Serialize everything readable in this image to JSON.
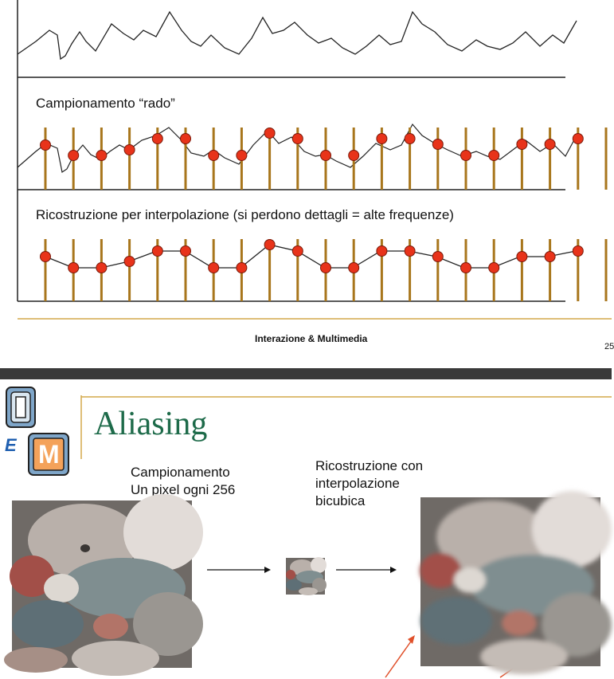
{
  "slide_top": {
    "caption_sparse": "Campionamento “rado”",
    "caption_reconstruction": "Ricostruzione per interpolazione (si perdono dettagli = alte frequenze)",
    "footer": "Interazione & Multimedia",
    "page_number": "25"
  },
  "slide_bottom": {
    "logo_letters": [
      "I",
      "E",
      "M"
    ],
    "title": "Aliasing",
    "sampling_label_line1": "Campionamento",
    "sampling_label_line2": "Un pixel ogni 256",
    "reconstruction_label_line1": "Ricostruzione con",
    "reconstruction_label_line2": "interpolazione",
    "reconstruction_label_line3": "bicubica"
  },
  "colors": {
    "sample_stick": "#a8761c",
    "sample_dot": "#e8331a",
    "gold_rule": "#d4a94a",
    "title_green": "#1e6b4a",
    "arrow_red": "#e0502a"
  },
  "icons": [
    "original-photo",
    "tiny-sampled-photo",
    "blurry-reconstructed-photo",
    "arrow-right-icon",
    "red-pointer-arrow-icon"
  ]
}
